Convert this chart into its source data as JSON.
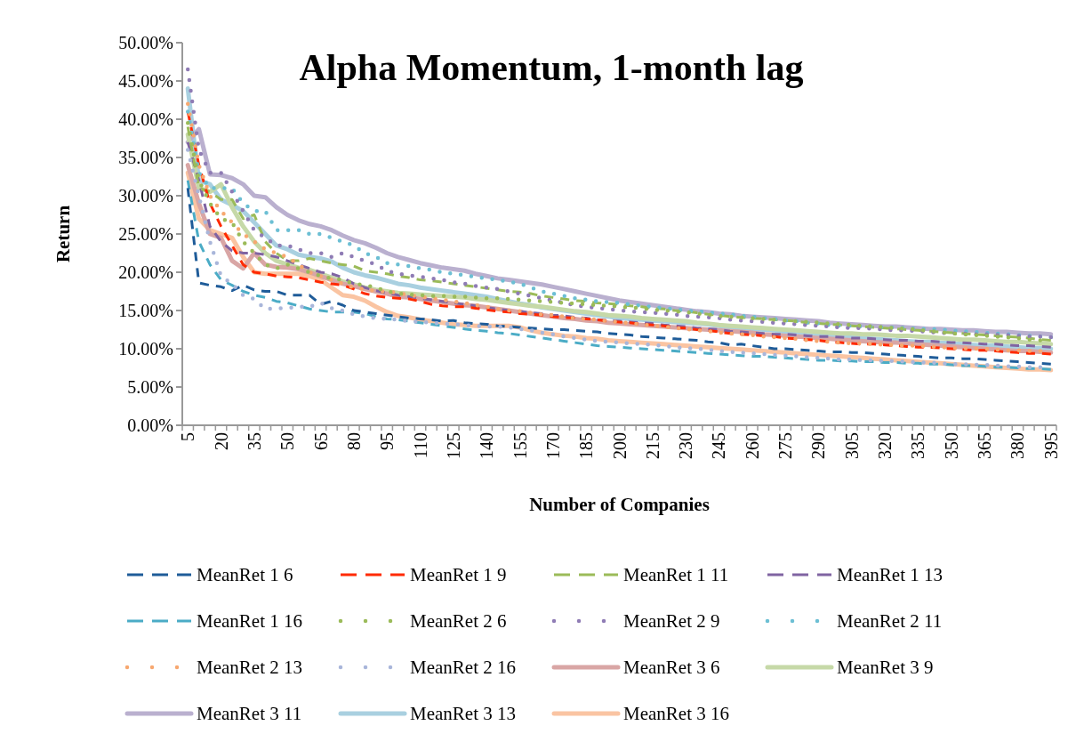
{
  "chart_data": {
    "type": "line",
    "title": "Alpha Momentum, 1-month lag",
    "xlabel": "Number of Companies",
    "ylabel": "Return",
    "categories": [
      "5",
      null,
      null,
      "20",
      null,
      null,
      "35",
      null,
      null,
      "50",
      null,
      null,
      "65",
      null,
      null,
      "80",
      null,
      null,
      "95",
      null,
      null,
      "110",
      null,
      null,
      "125",
      null,
      null,
      "140",
      null,
      null,
      "155",
      null,
      null,
      "170",
      null,
      null,
      "185",
      null,
      null,
      "200",
      null,
      null,
      "215",
      null,
      null,
      "230",
      null,
      null,
      "245",
      null,
      null,
      "260",
      null,
      null,
      "275",
      null,
      null,
      "290",
      null,
      null,
      "305",
      null,
      null,
      "320",
      null,
      null,
      "335",
      null,
      null,
      "350",
      null,
      null,
      "365",
      null,
      null,
      "380",
      null,
      null,
      "395"
    ],
    "ylim": [
      0,
      50
    ],
    "yticks": [
      {
        "value": 0,
        "label": "0.00%"
      },
      {
        "value": 5,
        "label": "5.00%"
      },
      {
        "value": 10,
        "label": "10.00%"
      },
      {
        "value": 15,
        "label": "15.00%"
      },
      {
        "value": 20,
        "label": "20.00%"
      },
      {
        "value": 25,
        "label": "25.00%"
      },
      {
        "value": 30,
        "label": "30.00%"
      },
      {
        "value": 35,
        "label": "35.00%"
      },
      {
        "value": 40,
        "label": "40.00%"
      },
      {
        "value": 45,
        "label": "45.00%"
      },
      {
        "value": 50,
        "label": "50.00%"
      }
    ],
    "grid": false,
    "legend": "bottom",
    "marker": "none",
    "series": [
      {
        "name": "MeanRet 1 6",
        "color": "#1f5c99",
        "line_style": "dashed",
        "values": [
          31.0,
          18.6,
          18.3,
          18.1,
          17.6,
          18.3,
          17.7,
          17.5,
          17.5,
          17.0,
          17.0,
          17.0,
          15.8,
          16.2,
          15.7,
          15.0,
          14.8,
          14.6,
          14.4,
          14.2,
          14.0,
          13.9,
          13.8,
          13.6,
          13.7,
          13.4,
          13.3,
          13.2,
          13.0,
          12.9,
          12.8,
          12.7,
          12.6,
          12.5,
          12.5,
          12.4,
          12.3,
          12.2,
          12.0,
          11.9,
          11.8,
          11.6,
          11.5,
          11.4,
          11.3,
          11.2,
          11.1,
          10.9,
          10.8,
          10.5,
          10.6,
          10.4,
          10.2,
          10.0,
          10.0,
          9.9,
          9.8,
          9.7,
          9.6,
          9.6,
          9.5,
          9.5,
          9.4,
          9.3,
          9.2,
          9.1,
          9.0,
          8.9,
          8.8,
          8.8,
          8.7,
          8.7,
          8.6,
          8.5,
          8.4,
          8.3,
          8.2,
          8.1,
          8.0
        ]
      },
      {
        "name": "MeanRet 1 9",
        "color": "#ff2a00",
        "line_style": "dashed",
        "values": [
          41.0,
          34.0,
          29.0,
          26.0,
          23.5,
          21.0,
          20.0,
          19.8,
          19.5,
          19.4,
          19.3,
          19.0,
          18.7,
          18.5,
          18.3,
          17.8,
          17.2,
          16.9,
          16.7,
          16.6,
          16.5,
          16.2,
          15.8,
          15.6,
          15.5,
          15.5,
          15.3,
          15.1,
          14.9,
          14.8,
          14.6,
          14.5,
          14.4,
          14.2,
          14.1,
          14.0,
          13.9,
          13.8,
          13.6,
          13.5,
          13.4,
          13.2,
          13.1,
          13.0,
          12.8,
          12.7,
          12.5,
          12.4,
          12.2,
          12.0,
          11.9,
          11.8,
          11.7,
          11.6,
          11.4,
          11.3,
          11.2,
          11.1,
          10.9,
          10.8,
          10.7,
          10.6,
          10.6,
          10.5,
          10.4,
          10.3,
          10.2,
          10.2,
          10.1,
          10.0,
          9.9,
          9.8,
          9.8,
          9.7,
          9.6,
          9.5,
          9.4,
          9.4,
          9.3
        ]
      },
      {
        "name": "MeanRet 1 11",
        "color": "#9bbb59",
        "line_style": "dashed",
        "values": [
          39.0,
          31.0,
          30.5,
          29.5,
          29.5,
          27.0,
          27.5,
          24.0,
          22.5,
          21.5,
          21.5,
          21.8,
          21.5,
          21.2,
          21.0,
          20.8,
          20.2,
          20.0,
          19.8,
          19.5,
          19.3,
          19.0,
          18.9,
          18.7,
          18.5,
          18.3,
          18.1,
          17.9,
          17.7,
          17.5,
          17.4,
          17.2,
          16.9,
          16.7,
          16.5,
          16.3,
          16.2,
          16.0,
          15.9,
          15.8,
          15.6,
          15.5,
          15.3,
          15.2,
          15.0,
          14.9,
          14.7,
          14.5,
          14.4,
          14.2,
          14.1,
          14.0,
          13.9,
          13.8,
          13.7,
          13.6,
          13.4,
          13.3,
          13.2,
          13.1,
          13.0,
          12.9,
          12.8,
          12.7,
          12.6,
          12.5,
          12.4,
          12.3,
          12.2,
          12.1,
          12.0,
          11.9,
          11.8,
          11.7,
          11.6,
          11.5,
          11.4,
          11.2,
          11.1
        ]
      },
      {
        "name": "MeanRet 1 13",
        "color": "#8064a2",
        "line_style": "dashed",
        "values": [
          37.0,
          32.0,
          26.0,
          24.0,
          22.8,
          22.5,
          22.5,
          22.3,
          22.0,
          21.5,
          21.0,
          20.5,
          20.0,
          19.8,
          19.3,
          18.5,
          18.0,
          17.6,
          17.3,
          17.0,
          16.8,
          16.6,
          16.4,
          16.2,
          16.0,
          15.8,
          15.6,
          15.4,
          15.2,
          15.0,
          14.9,
          14.7,
          14.6,
          14.4,
          14.3,
          14.1,
          14.0,
          13.8,
          13.7,
          13.6,
          13.5,
          13.4,
          13.3,
          13.1,
          13.0,
          12.9,
          12.7,
          12.6,
          12.5,
          12.3,
          12.2,
          12.1,
          12.0,
          11.9,
          11.9,
          11.8,
          11.7,
          11.6,
          11.6,
          11.5,
          11.4,
          11.4,
          11.3,
          11.2,
          11.1,
          11.1,
          11.0,
          11.0,
          10.9,
          10.8,
          10.8,
          10.7,
          10.6,
          10.6,
          10.5,
          10.4,
          10.4,
          10.3,
          10.2
        ]
      },
      {
        "name": "MeanRet 1 16",
        "color": "#4bacc6",
        "line_style": "dashed",
        "values": [
          32.0,
          24.0,
          21.0,
          19.0,
          18.3,
          17.5,
          17.0,
          16.7,
          16.2,
          16.0,
          15.6,
          15.2,
          15.0,
          14.8,
          14.8,
          14.8,
          14.6,
          14.2,
          13.9,
          13.8,
          13.6,
          13.4,
          13.2,
          13.0,
          12.8,
          12.6,
          12.4,
          12.3,
          12.1,
          12.0,
          11.8,
          11.6,
          11.4,
          11.2,
          11.0,
          10.8,
          10.6,
          10.4,
          10.3,
          10.2,
          10.1,
          10.0,
          9.9,
          9.8,
          9.7,
          9.6,
          9.5,
          9.4,
          9.3,
          9.2,
          9.1,
          9.0,
          9.0,
          8.9,
          8.8,
          8.7,
          8.6,
          8.5,
          8.5,
          8.4,
          8.4,
          8.3,
          8.3,
          8.2,
          8.2,
          8.1,
          8.1,
          8.0,
          8.0,
          7.9,
          7.8,
          7.8,
          7.7,
          7.6,
          7.6,
          7.5,
          7.4,
          7.4,
          7.3
        ]
      },
      {
        "name": "MeanRet 2 6",
        "color": "#9bbb59",
        "line_style": "dotted",
        "values": [
          39.5,
          32.0,
          29.0,
          27.0,
          26.5,
          24.0,
          22.5,
          21.0,
          20.5,
          21.0,
          20.5,
          20.0,
          19.5,
          19.2,
          19.0,
          18.5,
          18.3,
          18.0,
          17.5,
          17.2,
          17.1,
          17.0,
          16.9,
          16.9,
          16.8,
          16.8,
          16.7,
          16.6,
          16.6,
          16.5,
          16.4,
          16.3,
          16.2,
          16.1,
          16.0,
          15.9,
          15.8,
          15.7,
          15.6,
          15.5,
          15.4,
          15.3,
          15.1,
          15.0,
          14.9,
          14.8,
          14.6,
          14.5,
          14.3,
          14.2,
          14.1,
          14.0,
          13.9,
          13.8,
          13.7,
          13.6,
          13.5,
          13.4,
          13.3,
          13.2,
          13.1,
          13.0,
          12.9,
          12.8,
          12.7,
          12.6,
          12.5,
          12.3,
          12.2,
          12.0,
          11.9,
          11.8,
          11.7,
          11.6,
          11.5,
          11.4,
          11.2,
          11.1,
          11.0
        ]
      },
      {
        "name": "MeanRet 2 9",
        "color": "#8f7cb5",
        "line_style": "dotted",
        "values": [
          46.5,
          36.0,
          33.0,
          33.0,
          30.5,
          28.0,
          25.5,
          24.5,
          23.5,
          23.5,
          23.0,
          22.5,
          22.5,
          22.0,
          22.5,
          22.0,
          21.5,
          21.0,
          20.2,
          19.8,
          19.6,
          19.4,
          19.2,
          19.0,
          18.7,
          18.5,
          18.2,
          18.0,
          17.8,
          17.5,
          17.2,
          16.9,
          16.6,
          16.3,
          16.0,
          15.7,
          15.5,
          15.3,
          15.2,
          15.0,
          14.9,
          14.8,
          14.7,
          14.6,
          14.5,
          14.3,
          14.2,
          14.1,
          14.0,
          13.8,
          13.7,
          13.6,
          13.5,
          13.4,
          13.3,
          13.2,
          13.1,
          13.0,
          12.9,
          12.8,
          12.7,
          12.7,
          12.6,
          12.5,
          12.4,
          12.4,
          12.3,
          12.2,
          12.1,
          12.0,
          12.0,
          11.9,
          11.9,
          11.8,
          11.8,
          11.7,
          11.6,
          11.6,
          11.5
        ]
      },
      {
        "name": "MeanRet 2 11",
        "color": "#6cbfd4",
        "line_style": "dotted",
        "values": [
          41.0,
          33.0,
          31.0,
          31.0,
          31.0,
          29.0,
          28.0,
          28.0,
          25.5,
          25.5,
          25.5,
          25.0,
          25.0,
          24.5,
          24.0,
          23.5,
          22.5,
          22.0,
          21.2,
          21.0,
          20.8,
          20.5,
          20.3,
          20.0,
          19.8,
          19.6,
          19.4,
          19.2,
          19.0,
          18.8,
          18.5,
          18.0,
          17.5,
          17.2,
          16.9,
          16.6,
          16.4,
          16.2,
          16.1,
          16.0,
          15.8,
          15.6,
          15.5,
          15.3,
          15.2,
          15.0,
          14.9,
          14.8,
          14.6,
          14.5,
          14.3,
          14.2,
          14.0,
          13.9,
          13.7,
          13.6,
          13.4,
          13.3,
          13.1,
          13.0,
          13.0,
          12.9,
          12.9,
          12.8,
          12.8,
          12.7,
          12.6,
          12.6,
          12.5,
          12.4,
          12.3,
          12.2,
          12.1,
          12.0,
          11.9,
          11.8,
          11.7,
          11.6,
          11.5
        ]
      },
      {
        "name": "MeanRet 2 13",
        "color": "#f7a870",
        "line_style": "dotted",
        "values": [
          42.0,
          34.0,
          30.0,
          28.0,
          26.5,
          25.0,
          24.0,
          23.0,
          22.5,
          22.0,
          21.0,
          20.0,
          19.5,
          19.0,
          18.5,
          18.0,
          17.8,
          17.5,
          17.5,
          17.3,
          17.0,
          16.8,
          16.6,
          16.4,
          16.2,
          16.0,
          15.7,
          15.5,
          15.2,
          15.0,
          14.9,
          14.7,
          14.5,
          14.4,
          14.2,
          14.0,
          13.9,
          13.8,
          13.6,
          13.5,
          13.3,
          13.2,
          13.0,
          12.9,
          12.7,
          12.6,
          12.4,
          12.3,
          12.1,
          12.0,
          11.9,
          11.8,
          11.6,
          11.5,
          11.4,
          11.3,
          11.1,
          11.0,
          10.9,
          10.8,
          10.7,
          10.7,
          10.6,
          10.5,
          10.5,
          10.4,
          10.4,
          10.3,
          10.2,
          10.1,
          10.1,
          10.0,
          10.0,
          9.9,
          9.8,
          9.8,
          9.7,
          9.7,
          9.6
        ]
      },
      {
        "name": "MeanRet 2 16",
        "color": "#a9b6da",
        "line_style": "dotted",
        "values": [
          36.0,
          30.0,
          24.0,
          19.5,
          18.5,
          17.0,
          16.5,
          15.2,
          15.3,
          15.3,
          15.5,
          15.5,
          16.0,
          15.3,
          15.0,
          14.5,
          14.2,
          14.0,
          13.9,
          13.8,
          13.6,
          13.5,
          13.4,
          13.3,
          13.2,
          13.1,
          13.0,
          12.9,
          12.9,
          12.8,
          12.6,
          12.4,
          12.1,
          11.9,
          11.6,
          11.4,
          11.2,
          11.0,
          10.9,
          10.8,
          10.7,
          10.6,
          10.5,
          10.4,
          10.2,
          10.1,
          10.0,
          9.9,
          9.7,
          9.6,
          9.5,
          9.4,
          9.3,
          9.2,
          9.1,
          9.0,
          8.9,
          8.8,
          8.7,
          8.6,
          8.6,
          8.5,
          8.5,
          8.4,
          8.4,
          8.3,
          8.2,
          8.2,
          8.1,
          8.0,
          8.0,
          7.9,
          7.9,
          7.8,
          7.7,
          7.7,
          7.6,
          7.6,
          7.5
        ]
      },
      {
        "name": "MeanRet 3 6",
        "color": "#d9a6a5",
        "line_style": "solid",
        "values": [
          34.0,
          29.0,
          25.0,
          24.5,
          21.5,
          20.5,
          22.5,
          21.0,
          20.7,
          20.6,
          20.4,
          20.0,
          19.5,
          19.0,
          18.5,
          18.2,
          17.8,
          17.5,
          17.2,
          16.8,
          16.7,
          16.5,
          16.3,
          16.1,
          15.9,
          15.7,
          15.6,
          15.4,
          15.2,
          15.0,
          14.8,
          14.6,
          14.4,
          14.2,
          14.0,
          13.9,
          13.7,
          13.6,
          13.4,
          13.3,
          13.2,
          13.1,
          13.0,
          12.9,
          12.8,
          12.7,
          12.6,
          12.5,
          12.4,
          12.3,
          12.2,
          12.1,
          11.9,
          11.8,
          11.7,
          11.6,
          11.5,
          11.4,
          11.3,
          11.2,
          11.1,
          11.0,
          10.9,
          10.8,
          10.8,
          10.7,
          10.6,
          10.5,
          10.4,
          10.3,
          10.2,
          10.1,
          10.0,
          9.9,
          9.8,
          9.7,
          9.7,
          9.6,
          9.5
        ]
      },
      {
        "name": "MeanRet 3 9",
        "color": "#c6d9a8",
        "line_style": "solid",
        "values": [
          38.0,
          31.0,
          30.5,
          31.5,
          28.5,
          26.0,
          24.0,
          22.5,
          21.5,
          21.0,
          20.6,
          20.3,
          19.8,
          19.3,
          18.8,
          18.4,
          18.0,
          17.7,
          17.5,
          17.3,
          17.2,
          17.1,
          17.0,
          16.9,
          16.8,
          16.7,
          16.5,
          16.4,
          16.2,
          16.0,
          15.8,
          15.6,
          15.5,
          15.3,
          15.1,
          14.9,
          14.8,
          14.6,
          14.4,
          14.3,
          14.2,
          14.0,
          13.9,
          13.8,
          13.7,
          13.6,
          13.4,
          13.3,
          13.1,
          13.0,
          12.9,
          12.8,
          12.7,
          12.6,
          12.5,
          12.4,
          12.3,
          12.2,
          12.1,
          12.0,
          12.0,
          11.9,
          11.9,
          11.8,
          11.7,
          11.7,
          11.6,
          11.5,
          11.4,
          11.3,
          11.2,
          11.2,
          11.1,
          11.0,
          10.9,
          10.9,
          10.8,
          10.7,
          10.6
        ]
      },
      {
        "name": "MeanRet 3 11",
        "color": "#bab0cf",
        "line_style": "solid",
        "values": [
          37.0,
          38.7,
          32.8,
          32.7,
          32.3,
          31.5,
          30.0,
          29.8,
          28.5,
          27.5,
          26.8,
          26.3,
          26.0,
          25.5,
          24.8,
          24.2,
          23.8,
          23.2,
          22.5,
          22.0,
          21.6,
          21.2,
          20.9,
          20.6,
          20.4,
          20.2,
          19.8,
          19.5,
          19.2,
          19.0,
          18.8,
          18.6,
          18.4,
          18.1,
          17.8,
          17.5,
          17.2,
          16.9,
          16.6,
          16.3,
          16.1,
          15.9,
          15.7,
          15.5,
          15.3,
          15.1,
          14.9,
          14.8,
          14.6,
          14.5,
          14.3,
          14.2,
          14.1,
          14.0,
          13.9,
          13.8,
          13.7,
          13.6,
          13.4,
          13.3,
          13.2,
          13.1,
          13.0,
          12.9,
          12.9,
          12.8,
          12.7,
          12.6,
          12.6,
          12.5,
          12.4,
          12.4,
          12.3,
          12.2,
          12.2,
          12.1,
          12.0,
          12.0,
          11.9
        ]
      },
      {
        "name": "MeanRet 3 13",
        "color": "#a9d0e0",
        "line_style": "solid",
        "values": [
          44.0,
          32.0,
          31.5,
          29.5,
          28.8,
          28.0,
          26.5,
          25.0,
          23.5,
          23.0,
          22.3,
          22.0,
          21.8,
          21.4,
          20.6,
          20.0,
          19.6,
          19.3,
          18.9,
          18.5,
          18.3,
          18.0,
          17.8,
          17.6,
          17.4,
          17.2,
          17.0,
          16.8,
          16.5,
          16.2,
          15.9,
          15.7,
          15.4,
          15.2,
          15.0,
          14.8,
          14.6,
          14.4,
          14.2,
          14.0,
          13.9,
          13.8,
          13.7,
          13.6,
          13.5,
          13.4,
          13.3,
          13.2,
          13.0,
          12.8,
          12.7,
          12.6,
          12.5,
          12.4,
          12.2,
          12.1,
          12.0,
          11.9,
          11.7,
          11.6,
          11.5,
          11.4,
          11.3,
          11.2,
          11.1,
          11.0,
          10.9,
          10.9,
          10.8,
          10.7,
          10.6,
          10.5,
          10.4,
          10.4,
          10.3,
          10.2,
          10.1,
          10.1,
          10.0
        ]
      },
      {
        "name": "MeanRet 3 16",
        "color": "#fac4a2",
        "line_style": "solid",
        "values": [
          33.0,
          27.0,
          25.5,
          25.0,
          24.5,
          22.0,
          20.0,
          19.8,
          19.8,
          19.8,
          19.8,
          19.5,
          19.0,
          18.0,
          17.0,
          16.8,
          16.3,
          15.5,
          14.8,
          14.3,
          14.1,
          13.8,
          13.6,
          13.4,
          13.2,
          13.1,
          13.0,
          13.0,
          13.0,
          13.0,
          12.8,
          12.4,
          12.1,
          11.9,
          11.7,
          11.6,
          11.4,
          11.3,
          11.1,
          11.0,
          10.9,
          10.8,
          10.7,
          10.6,
          10.5,
          10.4,
          10.3,
          10.2,
          10.1,
          10.0,
          9.9,
          9.8,
          9.7,
          9.6,
          9.5,
          9.4,
          9.3,
          9.2,
          9.1,
          9.0,
          8.9,
          8.8,
          8.7,
          8.6,
          8.5,
          8.4,
          8.3,
          8.2,
          8.1,
          8.0,
          7.9,
          7.8,
          7.7,
          7.6,
          7.5,
          7.4,
          7.3,
          7.3,
          7.2
        ]
      }
    ]
  }
}
